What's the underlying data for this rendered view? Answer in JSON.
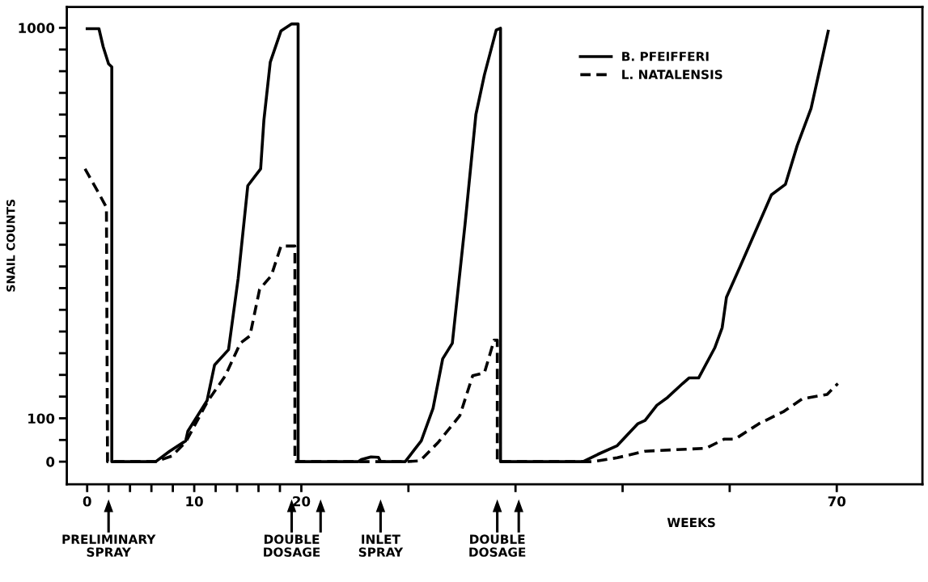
{
  "chart_data": {
    "type": "line",
    "ylabel": "SNAIL COUNTS",
    "xlabel": "WEEKS",
    "xlim": [
      -1.9,
      78
    ],
    "ylim": [
      -52,
      1048
    ],
    "xticks": [
      0,
      {
        "value": 2,
        "label": null
      },
      {
        "value": 4,
        "label": null
      },
      {
        "value": 6,
        "label": null
      },
      {
        "value": 8,
        "label": null
      },
      10,
      {
        "value": 12,
        "label": null
      },
      {
        "value": 14,
        "label": null
      },
      {
        "value": 16,
        "label": null
      },
      {
        "value": 18,
        "label": null
      },
      20,
      {
        "value": 30,
        "label": null
      },
      {
        "value": 40,
        "label": null
      },
      {
        "value": 50,
        "label": null
      },
      {
        "value": 60,
        "label": null
      },
      70
    ],
    "yticks": [
      0,
      {
        "value": 50,
        "label": null
      },
      100,
      {
        "value": 150,
        "label": null
      },
      {
        "value": 200,
        "label": null
      },
      {
        "value": 250,
        "label": null
      },
      {
        "value": 300,
        "label": null
      },
      {
        "value": 350,
        "label": null
      },
      {
        "value": 400,
        "label": null
      },
      {
        "value": 450,
        "label": null
      },
      {
        "value": 500,
        "label": null
      },
      {
        "value": 550,
        "label": null
      },
      {
        "value": 600,
        "label": null
      },
      {
        "value": 650,
        "label": null
      },
      {
        "value": 700,
        "label": null
      },
      {
        "value": 750,
        "label": null
      },
      {
        "value": 800,
        "label": null
      },
      {
        "value": 850,
        "label": null
      },
      {
        "value": 900,
        "label": null
      },
      {
        "value": 950,
        "label": null
      },
      1000
    ],
    "legend": "top right",
    "grid": false,
    "marker": "none",
    "series": [
      {
        "name": "B. PFEIFFERI",
        "color": "#000000",
        "line_style": "solid",
        "x": [
          0,
          1.1,
          1.5,
          2.0,
          2.3,
          2.3,
          6.4,
          7.7,
          9.2,
          9.4,
          11.2,
          11.9,
          13.2,
          14.1,
          15.0,
          16.2,
          16.5,
          17.1,
          18.1,
          19.1,
          19.7,
          19.7,
          25.3,
          25.6,
          26.5,
          27.2,
          27.4,
          29.7,
          31.2,
          32.3,
          33.2,
          34.1,
          35.3,
          36.3,
          37.1,
          38.2,
          38.6,
          38.6,
          46.3,
          47.7,
          49.5,
          51.4,
          52.1,
          53.2,
          54.2,
          55.6,
          56.2,
          57.1,
          58.6,
          59.3,
          59.7,
          61.0,
          63.9,
          65.2,
          66.3,
          67.6,
          69.2
        ],
        "values": [
          998,
          998,
          956,
          917,
          910,
          0,
          0,
          24,
          48,
          70,
          141,
          223,
          258,
          422,
          636,
          675,
          786,
          921,
          993,
          1009,
          1009,
          0,
          0,
          5,
          11,
          10,
          0,
          0,
          48,
          123,
          237,
          273,
          550,
          800,
          892,
          995,
          999,
          0,
          0,
          17,
          37,
          87,
          95,
          130,
          148,
          180,
          193,
          193,
          262,
          309,
          379,
          451,
          615,
          639,
          728,
          814,
          992
        ]
      },
      {
        "name": "L. NATALENSIS",
        "color": "#000000",
        "line_style": "dashed",
        "x": [
          -0.2,
          1.1,
          1.8,
          1.9,
          6.4,
          7.9,
          9.2,
          11.2,
          12.9,
          14.3,
          15.2,
          16.1,
          17.2,
          18.1,
          19.4,
          19.4,
          29.7,
          31.1,
          32.8,
          34.8,
          36.0,
          37.1,
          38.0,
          38.3,
          38.3,
          47.2,
          49.5,
          52.1,
          57.8,
          59.5,
          60.5,
          62.7,
          65.0,
          66.8,
          69.1,
          70.1
        ],
        "values": [
          675,
          618,
          586,
          0,
          0,
          13,
          45,
          137,
          198,
          273,
          290,
          397,
          429,
          497,
          497,
          0,
          0,
          2,
          45,
          106,
          198,
          205,
          280,
          280,
          0,
          0,
          9,
          24,
          31,
          52,
          52,
          87,
          115,
          145,
          155,
          180
        ]
      }
    ],
    "annotations": [
      "PRELIMINARY\nSPRAY",
      "DOUBLE\nDOSAGE",
      "INLET\nSPRAY",
      "DOUBLE\nDOSAGE"
    ]
  }
}
